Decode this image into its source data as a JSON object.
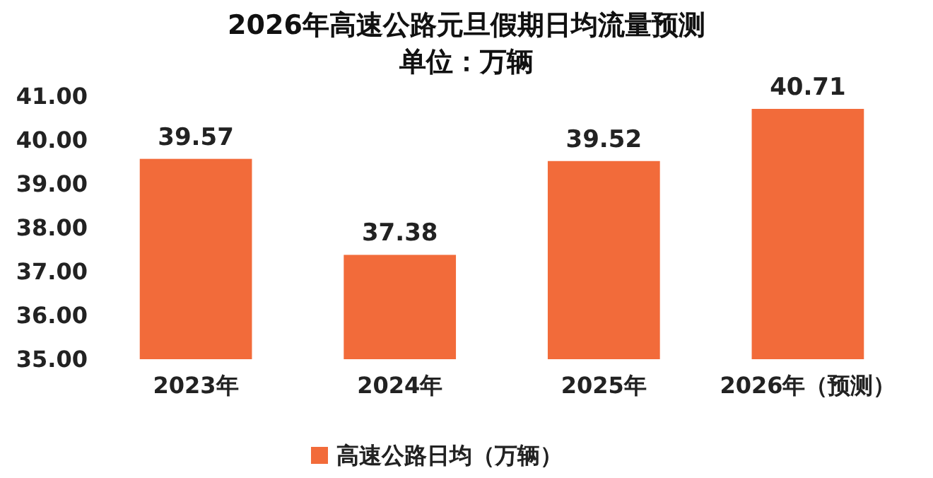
{
  "chart_data": {
    "type": "bar",
    "title": "2026年高速公路元旦假期日均流量预测",
    "subtitle": "单位：万辆",
    "categories": [
      "2023年",
      "2024年",
      "2025年",
      "2026年（预测）"
    ],
    "series": [
      {
        "name": "高速公路日均（万辆）",
        "color": "#f26b3a",
        "values": [
          39.57,
          37.38,
          39.52,
          40.71
        ]
      }
    ],
    "ylim": [
      35,
      41
    ],
    "yticks": [
      {
        "value": 35,
        "label": "35.00"
      },
      {
        "value": 36,
        "label": "36.00"
      },
      {
        "value": 37,
        "label": "37.00"
      },
      {
        "value": 38,
        "label": "38.00"
      },
      {
        "value": 39,
        "label": "39.00"
      },
      {
        "value": 40,
        "label": "40.00"
      },
      {
        "value": 41,
        "label": "41.00"
      }
    ],
    "data_labels": true,
    "legend": "bottom",
    "grid": false
  }
}
